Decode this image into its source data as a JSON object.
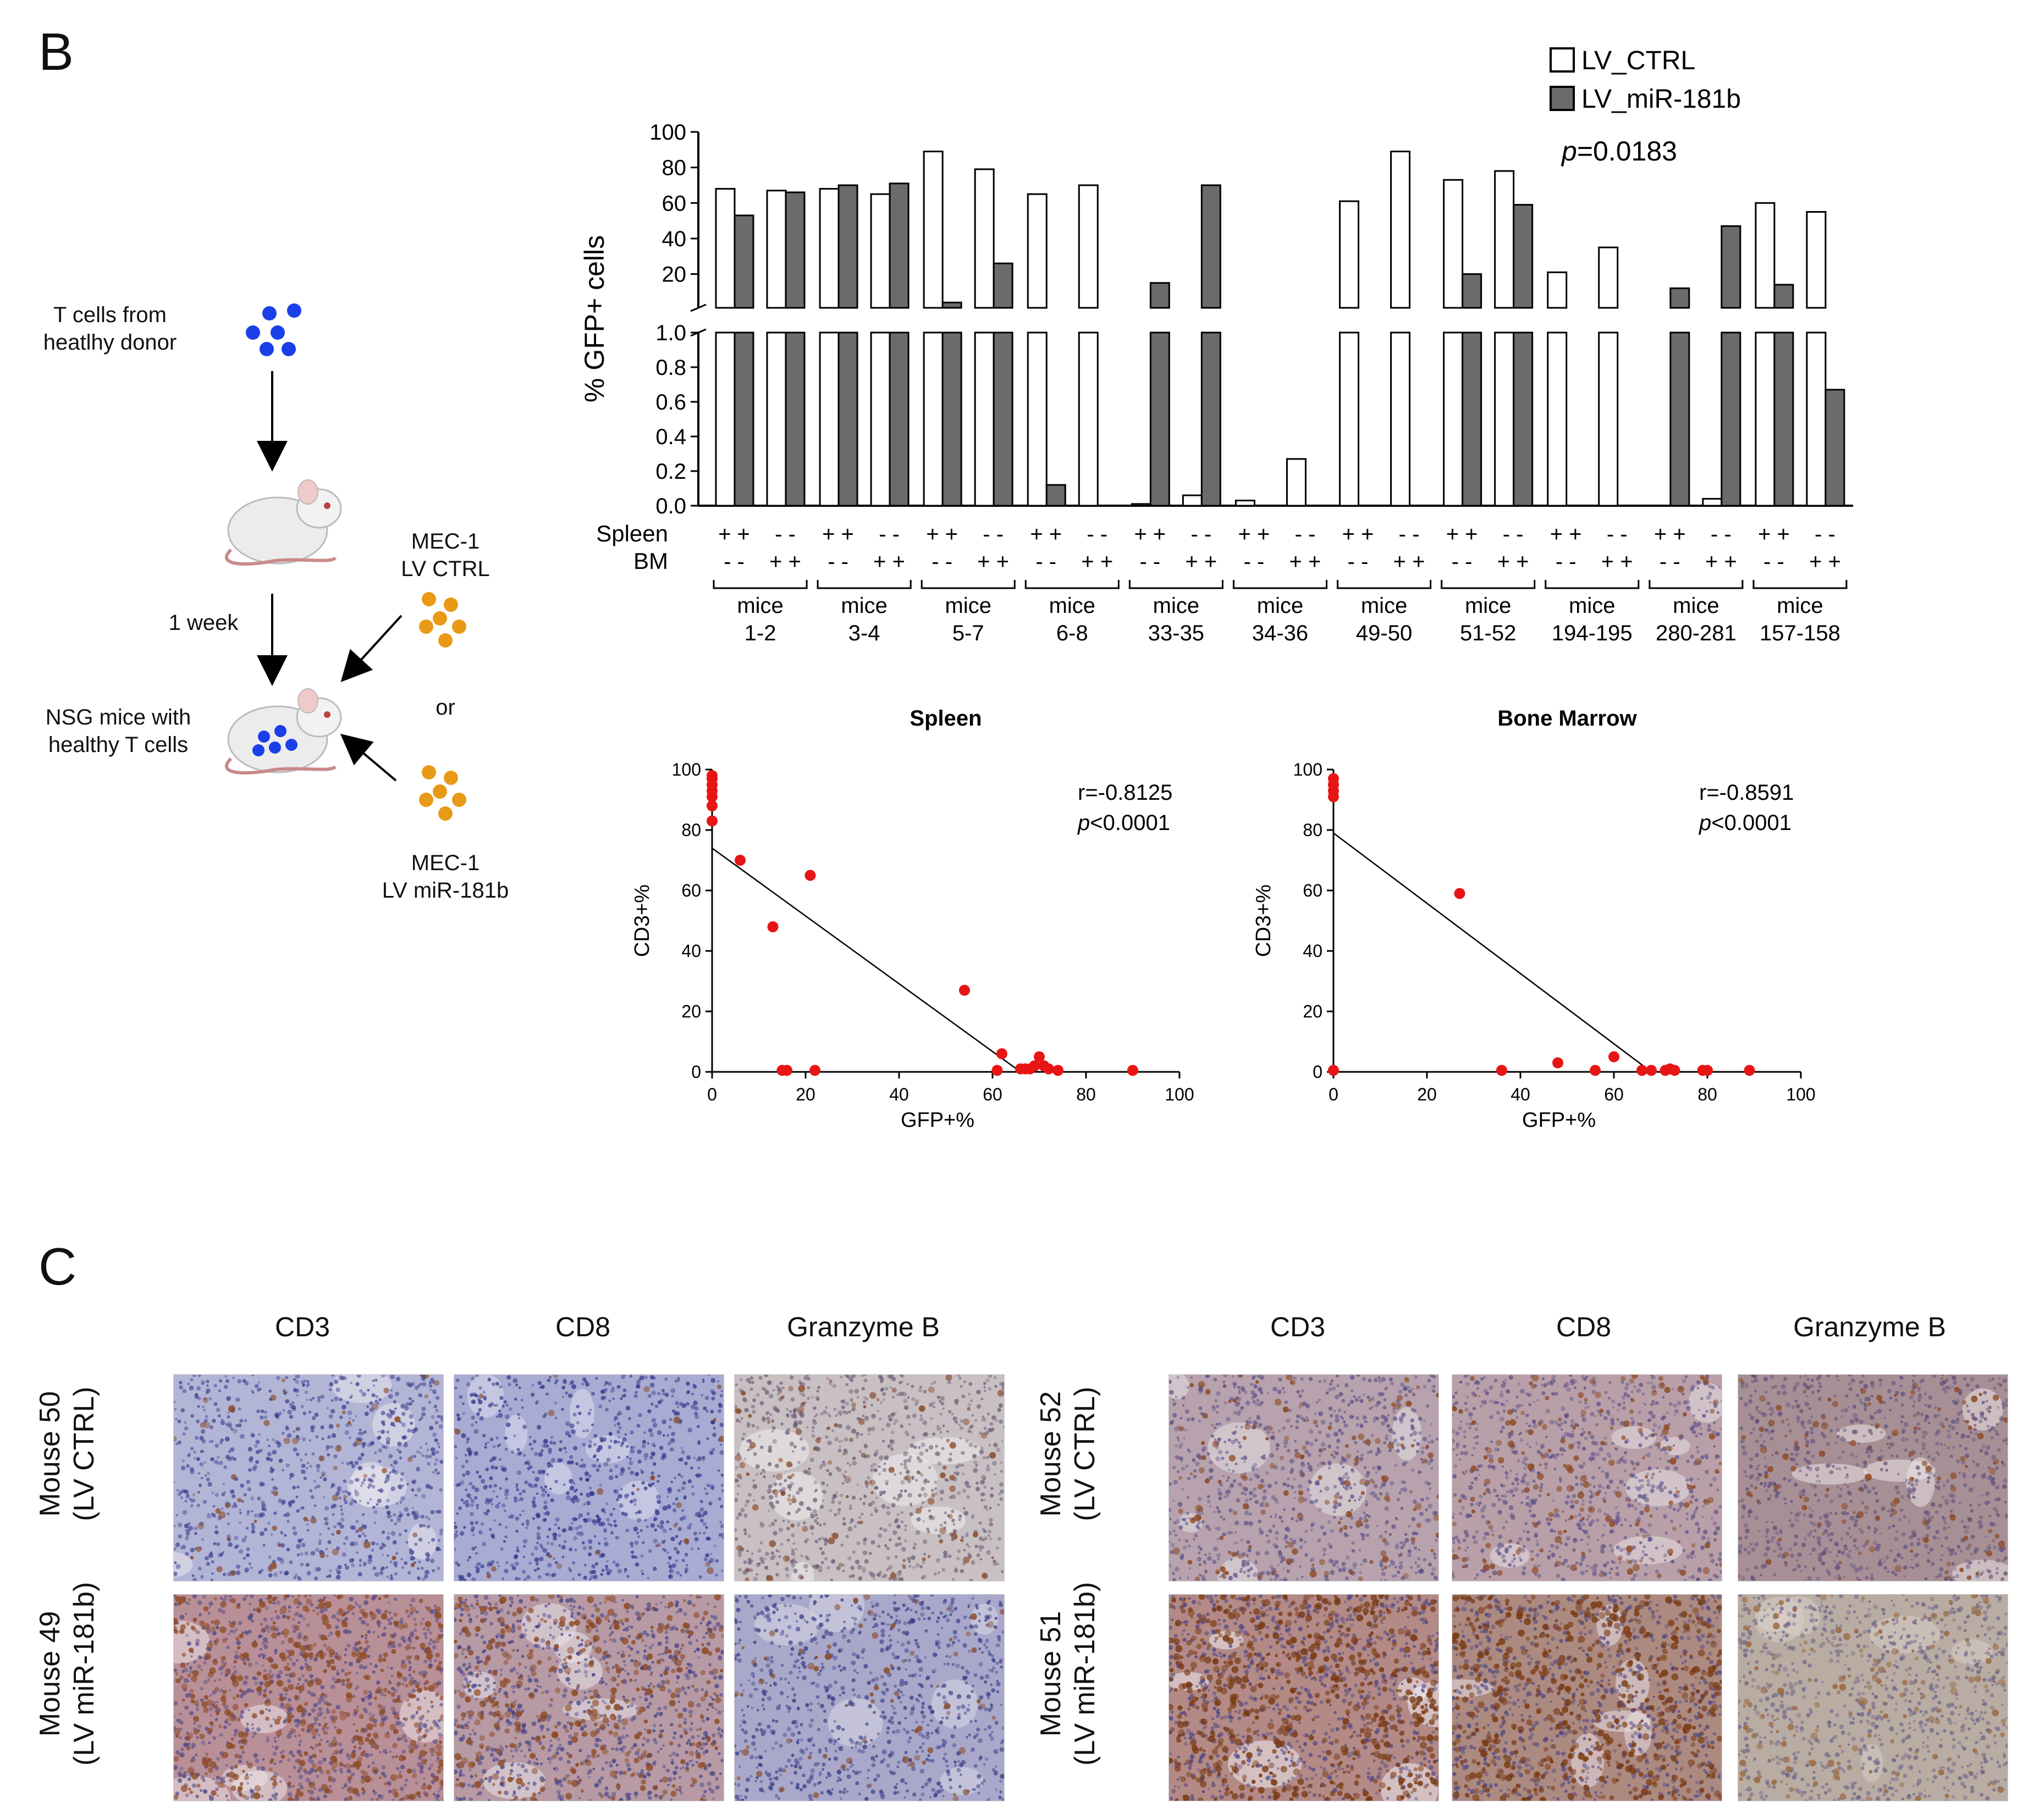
{
  "panel_b": {
    "letter": "B",
    "schematic": {
      "t_cells_label_1": "T cells from",
      "t_cells_label_2": "heatlhy donor",
      "week_label": "1 week",
      "nsg_label_1": "NSG mice with",
      "nsg_label_2": "healthy T cells",
      "mec_ctrl_1": "MEC-1",
      "mec_ctrl_2": "LV CTRL",
      "or_label": "or",
      "mec_mir_1": "MEC-1",
      "mec_mir_2": "LV miR-181b",
      "colors": {
        "t_cells": "#1a3ee8",
        "mec_cells": "#e89a16",
        "mouse_tail": "#c98a8a"
      },
      "icons": [
        "mouse-icon",
        "cell-cluster-icon",
        "arrow-icon"
      ]
    }
  },
  "chart_data": [
    {
      "type": "bar",
      "name": "gfp-bar-chart",
      "ylabel": "% GFP+ cells",
      "upper_ticks": [
        "100",
        "80",
        "60",
        "40",
        "20"
      ],
      "lower_ticks": [
        "1.0",
        "0.8",
        "0.6",
        "0.4",
        "0.2",
        "0.0"
      ],
      "ylim_upper": [
        1,
        100
      ],
      "ylim_lower": [
        0,
        1
      ],
      "legend": {
        "placement": "top-right",
        "ctrl_label": "LV_CTRL",
        "mir_label": "LV_miR-181b"
      },
      "p_prefix": "p",
      "p_suffix": "=0.0183",
      "row_labels": {
        "spleen": "Spleen",
        "bm": "BM"
      },
      "signs": {
        "spleen_tissue": "+ +",
        "bm_tissue": "- -",
        "spleen_other": "- -",
        "bm_other": "+ +"
      },
      "group_word": "mice",
      "groups": [
        {
          "label": "1-2",
          "ctrl": [
            68,
            67
          ],
          "mir": [
            53,
            66
          ]
        },
        {
          "label": "3-4",
          "ctrl": [
            68,
            65
          ],
          "mir": [
            70,
            71
          ]
        },
        {
          "label": "5-7",
          "ctrl": [
            89,
            79
          ],
          "mir": [
            4,
            26
          ]
        },
        {
          "label": "6-8",
          "ctrl": [
            65,
            70
          ],
          "mir": [
            0.12,
            0
          ]
        },
        {
          "label": "33-35",
          "ctrl": [
            0.01,
            0.06
          ],
          "mir": [
            15,
            70
          ]
        },
        {
          "label": "34-36",
          "ctrl": [
            0.03,
            0.27
          ],
          "mir": [
            0,
            0
          ]
        },
        {
          "label": "49-50",
          "ctrl": [
            61,
            89
          ],
          "mir": [
            0,
            0
          ]
        },
        {
          "label": "51-52",
          "ctrl": [
            73,
            78
          ],
          "mir": [
            20,
            59
          ]
        },
        {
          "label": "194-195",
          "ctrl": [
            21,
            35
          ],
          "mir": [
            0,
            0
          ]
        },
        {
          "label": "280-281",
          "ctrl": [
            0,
            0.04
          ],
          "mir": [
            12,
            47
          ]
        },
        {
          "label": "157-158",
          "ctrl": [
            60,
            55
          ],
          "mir": [
            14,
            0.67
          ]
        }
      ],
      "colors": {
        "ctrl": "#ffffff",
        "mir": "#6b6b6b",
        "stroke": "#000000"
      }
    },
    {
      "type": "scatter",
      "name": "spleen-scatter",
      "title": "Spleen",
      "xlabel": "GFP+%",
      "ylabel": "CD3+%",
      "xlim": [
        0,
        100
      ],
      "ylim": [
        0,
        100
      ],
      "ticks": [
        "0",
        "20",
        "40",
        "60",
        "80",
        "100"
      ],
      "r_text": "r=-0.8125",
      "p_prefix": "p",
      "p_suffix": "<0.0001",
      "fit": [
        [
          0,
          74
        ],
        [
          66,
          0
        ]
      ],
      "point_color": "#e81515",
      "points": [
        [
          0,
          98
        ],
        [
          0,
          97
        ],
        [
          0,
          95
        ],
        [
          0,
          93
        ],
        [
          0,
          91
        ],
        [
          0,
          88
        ],
        [
          0,
          83
        ],
        [
          6,
          70
        ],
        [
          21,
          65
        ],
        [
          13,
          48
        ],
        [
          54,
          27
        ],
        [
          62,
          6
        ],
        [
          15,
          0.5
        ],
        [
          16,
          0.5
        ],
        [
          22,
          0.5
        ],
        [
          61,
          0.5
        ],
        [
          66,
          1
        ],
        [
          67,
          1
        ],
        [
          68,
          1
        ],
        [
          69,
          2
        ],
        [
          70,
          5
        ],
        [
          71,
          2
        ],
        [
          72,
          1
        ],
        [
          74,
          0.5
        ],
        [
          90,
          0.5
        ]
      ]
    },
    {
      "type": "scatter",
      "name": "bone-marrow-scatter",
      "title": "Bone Marrow",
      "xlabel": "GFP+%",
      "ylabel": "CD3+%",
      "xlim": [
        0,
        100
      ],
      "ylim": [
        0,
        100
      ],
      "ticks": [
        "0",
        "20",
        "40",
        "60",
        "80",
        "100"
      ],
      "r_text": "r=-0.8591",
      "p_prefix": "p",
      "p_suffix": "<0.0001",
      "fit": [
        [
          0,
          79
        ],
        [
          68,
          0
        ]
      ],
      "point_color": "#e81515",
      "points": [
        [
          0,
          97
        ],
        [
          0,
          95
        ],
        [
          0,
          93
        ],
        [
          0,
          91
        ],
        [
          0,
          0.5
        ],
        [
          27,
          59
        ],
        [
          36,
          0.5
        ],
        [
          48,
          3
        ],
        [
          56,
          0.5
        ],
        [
          60,
          5
        ],
        [
          66,
          0.5
        ],
        [
          68,
          0.5
        ],
        [
          71,
          0.5
        ],
        [
          72,
          1
        ],
        [
          73,
          0.5
        ],
        [
          79,
          0.5
        ],
        [
          80,
          0.5
        ],
        [
          89,
          0.5
        ]
      ]
    }
  ],
  "panel_c": {
    "letter": "C",
    "col_headers_left": [
      "CD3",
      "CD8",
      "Granzyme B"
    ],
    "col_headers_right": [
      "CD3",
      "CD8",
      "Granzyme B"
    ],
    "rows_left": [
      {
        "line1": "Mouse 50",
        "line2": "(LV CTRL)"
      },
      {
        "line1": "Mouse 49",
        "line2": "(LV miR-181b)"
      }
    ],
    "rows_right": [
      {
        "line1": "Mouse 52",
        "line2": "(LV CTRL)"
      },
      {
        "line1": "Mouse 51",
        "line2": "(LV miR-181b)"
      }
    ],
    "tiles": [
      {
        "bg": "#b3b5d6",
        "dark": "#3b3d8e",
        "brown": "#8a4d2c",
        "pale": "#e9e6ef",
        "brown_frac": 0.05
      },
      {
        "bg": "#a8abd2",
        "dark": "#2c2f86",
        "brown": "#8a4d2c",
        "pale": "#dcdcec",
        "brown_frac": 0.02
      },
      {
        "bg": "#c9c0c3",
        "dark": "#6a5a74",
        "brown": "#8a4d2c",
        "pale": "#efecec",
        "brown_frac": 0.08
      },
      {
        "bg": "#b98f98",
        "dark": "#4b4683",
        "brown": "#8d4b25",
        "pale": "#ece4e8",
        "brown_frac": 0.45
      },
      {
        "bg": "#b79aa4",
        "dark": "#3e3d86",
        "brown": "#8d4b25",
        "pale": "#e9e3ea",
        "brown_frac": 0.35
      },
      {
        "bg": "#a9a8ca",
        "dark": "#363985",
        "brown": "#8a4d2c",
        "pale": "#d9d7e6",
        "brown_frac": 0.06
      },
      {
        "bg": "#b7a2ad",
        "dark": "#5a4f86",
        "brown": "#8d4b25",
        "pale": "#e8e2e6",
        "brown_frac": 0.12
      },
      {
        "bg": "#b9a0a8",
        "dark": "#5a4f86",
        "brown": "#8d4b25",
        "pale": "#e7e0e4",
        "brown_frac": 0.15
      },
      {
        "bg": "#a78f96",
        "dark": "#5e4e7a",
        "brown": "#8d4b25",
        "pale": "#ebe4e4",
        "brown_frac": 0.1
      },
      {
        "bg": "#b38a86",
        "dark": "#4b4383",
        "brown": "#7a3b14",
        "pale": "#f0ecf2",
        "brown_frac": 0.6
      },
      {
        "bg": "#ad8a80",
        "dark": "#4b4383",
        "brown": "#7a3b14",
        "pale": "#e8e0e4",
        "brown_frac": 0.55
      },
      {
        "bg": "#b9aca3",
        "dark": "#6c6186",
        "brown": "#9a6a42",
        "pale": "#d9d0c8",
        "brown_frac": 0.15
      }
    ]
  }
}
